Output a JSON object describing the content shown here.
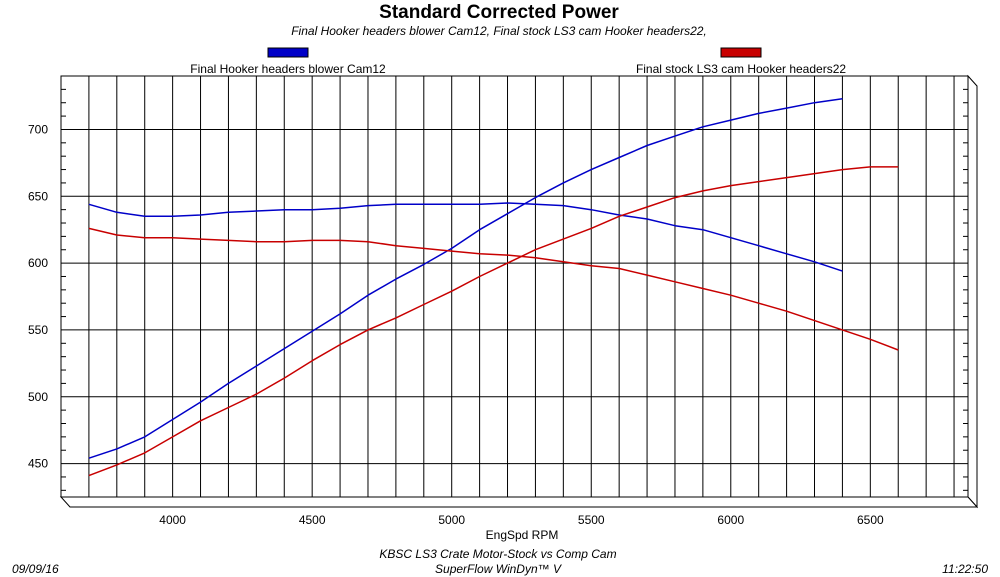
{
  "chart_data": {
    "type": "line",
    "title": "Standard Corrected Power",
    "subtitle": "Final Hooker headers blower Cam12, Final stock LS3 cam  Hooker headers22,",
    "xlabel": "EngSpd RPM",
    "ylabel": "",
    "xlim": [
      3600,
      6850
    ],
    "ylim": [
      425,
      740
    ],
    "xticks": [
      4000,
      4500,
      5000,
      5500,
      6000,
      6500
    ],
    "yticks": [
      450,
      500,
      550,
      600,
      650,
      700
    ],
    "grid": true,
    "legend_position": "top",
    "series": [
      {
        "name": "Final Hooker headers blower Cam12",
        "color": "#0000c8",
        "curves": [
          {
            "x": [
              3700,
              3800,
              3900,
              4000,
              4100,
              4200,
              4300,
              4400,
              4500,
              4600,
              4700,
              4800,
              4900,
              5000,
              5100,
              5200,
              5300,
              5400,
              5500,
              5600,
              5700,
              5800,
              5900,
              6000,
              6100,
              6200,
              6300,
              6400
            ],
            "y": [
              454,
              461,
              470,
              483,
              496,
              510,
              523,
              536,
              549,
              562,
              576,
              588,
              599,
              611,
              625,
              637,
              649,
              660,
              670,
              679,
              688,
              695,
              702,
              707,
              712,
              716,
              720,
              723
            ]
          },
          {
            "x": [
              3700,
              3800,
              3900,
              4000,
              4100,
              4200,
              4300,
              4400,
              4500,
              4600,
              4700,
              4800,
              4900,
              5000,
              5100,
              5200,
              5300,
              5400,
              5500,
              5600,
              5700,
              5800,
              5900,
              6000,
              6100,
              6200,
              6300,
              6400
            ],
            "y": [
              644,
              638,
              635,
              635,
              636,
              638,
              639,
              640,
              640,
              641,
              643,
              644,
              644,
              644,
              644,
              645,
              644,
              643,
              640,
              636,
              633,
              628,
              625,
              619,
              613,
              607,
              601,
              594
            ]
          }
        ]
      },
      {
        "name": "Final stock LS3 cam  Hooker headers22",
        "color": "#c80000",
        "curves": [
          {
            "x": [
              3700,
              3800,
              3900,
              4000,
              4100,
              4200,
              4300,
              4400,
              4500,
              4600,
              4700,
              4800,
              4900,
              5000,
              5100,
              5200,
              5300,
              5400,
              5500,
              5600,
              5700,
              5800,
              5900,
              6000,
              6100,
              6200,
              6300,
              6400,
              6500,
              6600
            ],
            "y": [
              441,
              449,
              458,
              470,
              482,
              492,
              502,
              514,
              527,
              539,
              550,
              559,
              569,
              579,
              590,
              600,
              610,
              618,
              626,
              635,
              642,
              649,
              654,
              658,
              661,
              664,
              667,
              670,
              672,
              672
            ]
          },
          {
            "x": [
              3700,
              3800,
              3900,
              4000,
              4100,
              4200,
              4300,
              4400,
              4500,
              4600,
              4700,
              4800,
              4900,
              5000,
              5100,
              5200,
              5300,
              5400,
              5500,
              5600,
              5700,
              5800,
              5900,
              6000,
              6100,
              6200,
              6300,
              6400,
              6500,
              6600
            ],
            "y": [
              626,
              621,
              619,
              619,
              618,
              617,
              616,
              616,
              617,
              617,
              616,
              613,
              611,
              609,
              607,
              606,
              604,
              601,
              598,
              596,
              591,
              586,
              581,
              576,
              570,
              564,
              557,
              550,
              543,
              535
            ]
          }
        ]
      }
    ]
  },
  "footer": {
    "date": "09/09/16",
    "time": "11:22:50",
    "line1": "KBSC LS3 Crate Motor-Stock vs Comp Cam",
    "line2": "SuperFlow WinDyn™ V"
  }
}
